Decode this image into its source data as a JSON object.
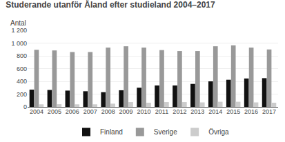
{
  "chart_data": {
    "type": "bar",
    "title": "Studerande utanför Åland efter studieland 2004–2017",
    "ylabel": "Antal",
    "categories": [
      "2004",
      "2005",
      "2006",
      "2007",
      "2008",
      "2009",
      "2010",
      "2011",
      "2012",
      "2013",
      "2014",
      "2015",
      "2016",
      "2017"
    ],
    "series": [
      {
        "name": "Finland",
        "color": "#111111",
        "values": [
          270,
          265,
          255,
          245,
          230,
          260,
          300,
          335,
          335,
          360,
          400,
          425,
          445,
          450
        ]
      },
      {
        "name": "Sverige",
        "color": "#999999",
        "values": [
          895,
          885,
          860,
          860,
          930,
          950,
          930,
          890,
          875,
          875,
          950,
          965,
          930,
          900
        ]
      },
      {
        "name": "Övriga",
        "color": "#cccccc",
        "values": [
          40,
          42,
          40,
          40,
          50,
          75,
          65,
          75,
          75,
          70,
          80,
          80,
          70,
          65
        ]
      }
    ],
    "ylim": [
      0,
      1200
    ],
    "yticks": [
      0,
      200,
      400,
      600,
      800,
      {
        "value": 1000,
        "label": "1 000"
      },
      {
        "value": 1200,
        "label": "1 200"
      }
    ],
    "grid": true,
    "legend": "bottom"
  }
}
